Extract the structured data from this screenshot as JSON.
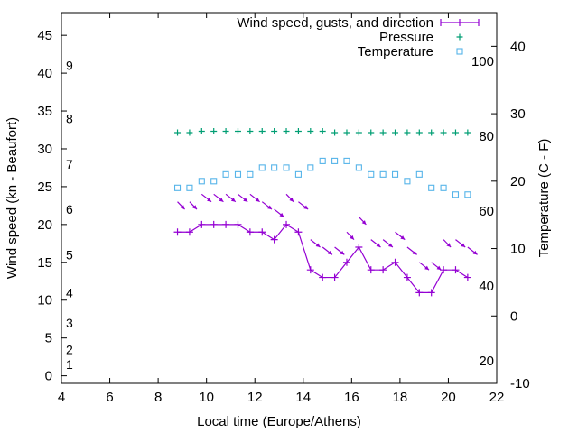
{
  "chart_data": {
    "type": "line",
    "xlabel": "Local time (Europe/Athens)",
    "ylabel": "Wind speed (kn - Beaufort)",
    "y2label": "Temperature (C - F)",
    "xlim": [
      4,
      22
    ],
    "ylim": [
      -1,
      48
    ],
    "y2lim": [
      -10,
      45
    ],
    "x_ticks": [
      4,
      6,
      8,
      10,
      12,
      14,
      16,
      18,
      20,
      22
    ],
    "y_ticks": [
      0,
      5,
      10,
      15,
      20,
      25,
      30,
      35,
      40,
      45
    ],
    "y2_ticks": [
      -10,
      0,
      10,
      20,
      30,
      40
    ],
    "beaufort_labels": [
      "1",
      "2",
      "3",
      "4",
      "5",
      "6",
      "7",
      "8",
      "9"
    ],
    "fahrenheit_labels": [
      "20",
      "40",
      "60",
      "80",
      "100"
    ],
    "grid": false,
    "legend_position": "top-right",
    "colors": {
      "wind": "#9400d3",
      "pressure": "#009e73",
      "temperature": "#56b4e9"
    },
    "series": [
      {
        "name": "Wind speed, gusts, and direction",
        "axis": "left",
        "x": [
          8.8,
          9.3,
          9.8,
          10.3,
          10.8,
          11.3,
          11.8,
          12.3,
          12.8,
          13.3,
          13.8,
          14.3,
          14.8,
          15.3,
          15.8,
          16.3,
          16.8,
          17.3,
          17.8,
          18.3,
          18.8,
          19.3,
          19.8,
          20.3,
          20.8
        ],
        "values": [
          19,
          19,
          20,
          20,
          20,
          20,
          19,
          19,
          18,
          20,
          19,
          14,
          13,
          13,
          15,
          17,
          14,
          14,
          15,
          13,
          11,
          11,
          14,
          14,
          13
        ]
      },
      {
        "name": "Pressure",
        "axis": "right",
        "x": [
          8.8,
          9.3,
          9.8,
          10.3,
          10.8,
          11.3,
          11.8,
          12.3,
          12.8,
          13.3,
          13.8,
          14.3,
          14.8,
          15.3,
          15.8,
          16.3,
          16.8,
          17.3,
          17.8,
          18.3,
          18.8,
          19.3,
          19.8,
          20.3,
          20.8
        ],
        "values": [
          27.2,
          27.2,
          27.4,
          27.4,
          27.4,
          27.4,
          27.4,
          27.4,
          27.4,
          27.4,
          27.4,
          27.4,
          27.4,
          27.2,
          27.2,
          27.2,
          27.2,
          27.2,
          27.2,
          27.2,
          27.2,
          27.2,
          27.2,
          27.2,
          27.2
        ]
      },
      {
        "name": "Temperature",
        "axis": "right",
        "x": [
          8.8,
          9.3,
          9.8,
          10.3,
          10.8,
          11.3,
          11.8,
          12.3,
          12.8,
          13.3,
          13.8,
          14.3,
          14.8,
          15.3,
          15.8,
          16.3,
          16.8,
          17.3,
          17.8,
          18.3,
          18.8,
          19.3,
          19.8,
          20.3,
          20.8
        ],
        "values": [
          19,
          19,
          20,
          20,
          21,
          21,
          21,
          22,
          22,
          22,
          21,
          22,
          23,
          23,
          23,
          22,
          21,
          21,
          21,
          20,
          21,
          19,
          19,
          18,
          18
        ]
      }
    ],
    "wind_direction_arrows": {
      "x": [
        8.8,
        9.3,
        9.8,
        10.3,
        10.8,
        11.3,
        11.8,
        12.3,
        12.8,
        13.3,
        13.8,
        14.3,
        14.8,
        15.3,
        15.8,
        16.3,
        16.8,
        17.3,
        17.8,
        18.3,
        18.8,
        19.3,
        19.8,
        20.3,
        20.8
      ],
      "y": [
        23,
        23,
        24,
        24,
        24,
        24,
        24,
        23,
        22,
        24,
        23,
        18,
        17,
        17,
        19,
        21,
        18,
        18,
        19,
        17,
        15,
        15,
        18,
        18,
        17
      ],
      "dx": [
        0.3,
        0.3,
        0.4,
        0.4,
        0.4,
        0.4,
        0.4,
        0.4,
        0.4,
        0.3,
        0.4,
        0.4,
        0.4,
        0.4,
        0.3,
        0.3,
        0.4,
        0.4,
        0.4,
        0.4,
        0.4,
        0.4,
        0.3,
        0.4,
        0.4
      ],
      "dy": [
        -1,
        -1,
        -1,
        -1,
        -1,
        -1,
        -1,
        -1,
        -1,
        -1,
        -1,
        -1,
        -1,
        -1,
        -1,
        -1,
        -1,
        -1,
        -1,
        -1,
        -1,
        -1,
        -1,
        -1,
        -1
      ]
    }
  }
}
